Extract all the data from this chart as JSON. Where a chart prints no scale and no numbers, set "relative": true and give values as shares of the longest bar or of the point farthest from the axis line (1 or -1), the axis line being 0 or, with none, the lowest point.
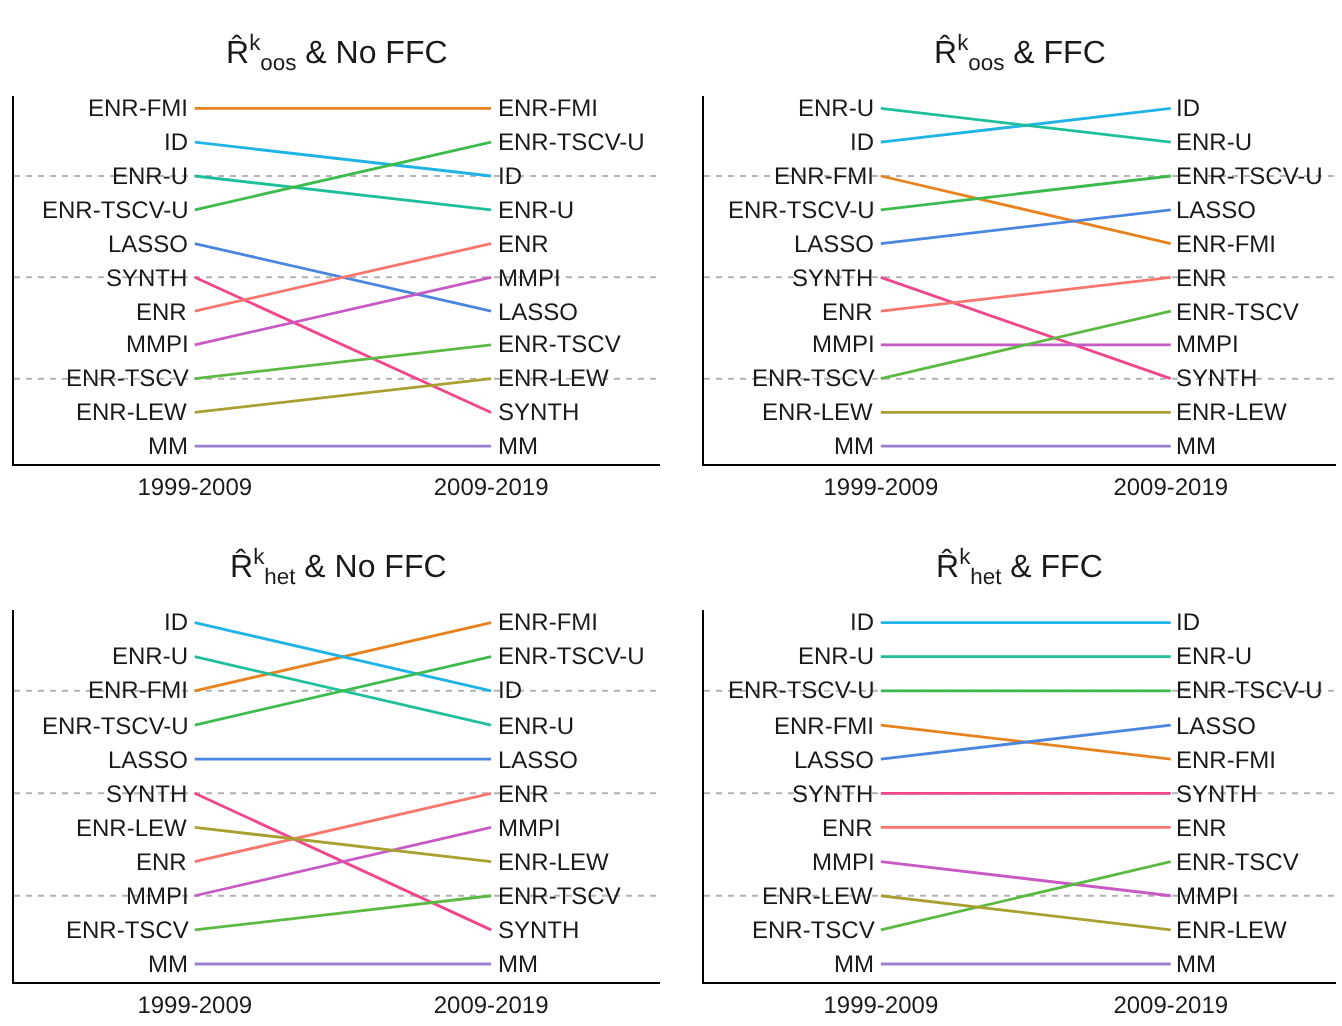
{
  "chart_data": [
    {
      "type": "line",
      "title": "R̂$^{k}$$_{oos}$ & No FFC",
      "categories": [
        "1999-2009",
        "2009-2019"
      ],
      "relative": true,
      "marker": "none",
      "series": [
        {
          "name": "ENR-FMI",
          "color": "#e8821e",
          "values": [
            1.0,
            1.0
          ]
        },
        {
          "name": "ID",
          "color": "#1fb3e6",
          "values": [
            0.905,
            0.81
          ]
        },
        {
          "name": "ENR-U",
          "color": "#1fbf9c",
          "values": [
            0.81,
            0.715
          ]
        },
        {
          "name": "ENR-TSCV-U",
          "color": "#3dbb4f",
          "values": [
            0.715,
            0.905
          ]
        },
        {
          "name": "LASSO",
          "color": "#4a86df",
          "values": [
            0.62,
            0.43
          ]
        },
        {
          "name": "SYNTH",
          "color": "#f0468c",
          "values": [
            0.525,
            0.145
          ]
        },
        {
          "name": "ENR",
          "color": "#f8766d",
          "values": [
            0.43,
            0.62
          ]
        },
        {
          "name": "MMPI",
          "color": "#c85ac4",
          "values": [
            0.335,
            0.525
          ]
        },
        {
          "name": "ENR-TSCV",
          "color": "#5cb944",
          "values": [
            0.24,
            0.335
          ]
        },
        {
          "name": "ENR-LEW",
          "color": "#a9a032",
          "values": [
            0.145,
            0.24
          ]
        },
        {
          "name": "MM",
          "color": "#9a80cf",
          "values": [
            0.05,
            0.05
          ]
        }
      ],
      "ref_lines": [
        {
          "axis": "y",
          "value": 0.81,
          "color": "#b3b3b3",
          "line_style": "dotted"
        },
        {
          "axis": "y",
          "value": 0.525,
          "color": "#b3b3b3",
          "line_style": "dotted"
        },
        {
          "axis": "y",
          "value": 0.24,
          "color": "#b3b3b3",
          "line_style": "dotted"
        }
      ]
    },
    {
      "type": "line",
      "title": "R̂$^{k}$$_{oos}$ & FFC",
      "categories": [
        "1999-2009",
        "2009-2019"
      ],
      "relative": true,
      "marker": "none",
      "series": [
        {
          "name": "ENR-FMI",
          "color": "#e8821e",
          "values": [
            0.81,
            0.62
          ]
        },
        {
          "name": "ID",
          "color": "#1fb3e6",
          "values": [
            0.905,
            1.0
          ]
        },
        {
          "name": "ENR-U",
          "color": "#1fbf9c",
          "values": [
            1.0,
            0.905
          ]
        },
        {
          "name": "ENR-TSCV-U",
          "color": "#3dbb4f",
          "values": [
            0.715,
            0.81
          ]
        },
        {
          "name": "LASSO",
          "color": "#4a86df",
          "values": [
            0.62,
            0.715
          ]
        },
        {
          "name": "SYNTH",
          "color": "#f0468c",
          "values": [
            0.525,
            0.24
          ]
        },
        {
          "name": "ENR",
          "color": "#f8766d",
          "values": [
            0.43,
            0.525
          ]
        },
        {
          "name": "MMPI",
          "color": "#c85ac4",
          "values": [
            0.335,
            0.335
          ]
        },
        {
          "name": "ENR-TSCV",
          "color": "#5cb944",
          "values": [
            0.24,
            0.43
          ]
        },
        {
          "name": "ENR-LEW",
          "color": "#a9a032",
          "values": [
            0.145,
            0.145
          ]
        },
        {
          "name": "MM",
          "color": "#9a80cf",
          "values": [
            0.05,
            0.05
          ]
        }
      ],
      "ref_lines": [
        {
          "axis": "y",
          "value": 0.81,
          "color": "#b3b3b3",
          "line_style": "dotted"
        },
        {
          "axis": "y",
          "value": 0.525,
          "color": "#b3b3b3",
          "line_style": "dotted"
        },
        {
          "axis": "y",
          "value": 0.24,
          "color": "#b3b3b3",
          "line_style": "dotted"
        }
      ]
    },
    {
      "type": "line",
      "title": "R̂$^{k}$$_{het}$ & No FFC",
      "categories": [
        "1999-2009",
        "2009-2019"
      ],
      "relative": true,
      "marker": "none",
      "series": [
        {
          "name": "ENR-FMI",
          "color": "#e8821e",
          "values": [
            0.81,
            1.0
          ]
        },
        {
          "name": "ID",
          "color": "#1fb3e6",
          "values": [
            1.0,
            0.81
          ]
        },
        {
          "name": "ENR-U",
          "color": "#1fbf9c",
          "values": [
            0.905,
            0.715
          ]
        },
        {
          "name": "ENR-TSCV-U",
          "color": "#3dbb4f",
          "values": [
            0.715,
            0.905
          ]
        },
        {
          "name": "LASSO",
          "color": "#4a86df",
          "values": [
            0.62,
            0.62
          ]
        },
        {
          "name": "SYNTH",
          "color": "#f0468c",
          "values": [
            0.525,
            0.145
          ]
        },
        {
          "name": "ENR",
          "color": "#f8766d",
          "values": [
            0.335,
            0.525
          ]
        },
        {
          "name": "MMPI",
          "color": "#c85ac4",
          "values": [
            0.24,
            0.43
          ]
        },
        {
          "name": "ENR-TSCV",
          "color": "#5cb944",
          "values": [
            0.145,
            0.24
          ]
        },
        {
          "name": "ENR-LEW",
          "color": "#a9a032",
          "values": [
            0.43,
            0.335
          ]
        },
        {
          "name": "MM",
          "color": "#9a80cf",
          "values": [
            0.05,
            0.05
          ]
        }
      ],
      "ref_lines": [
        {
          "axis": "y",
          "value": 0.81,
          "color": "#b3b3b3",
          "line_style": "dotted"
        },
        {
          "axis": "y",
          "value": 0.525,
          "color": "#b3b3b3",
          "line_style": "dotted"
        },
        {
          "axis": "y",
          "value": 0.24,
          "color": "#b3b3b3",
          "line_style": "dotted"
        }
      ]
    },
    {
      "type": "line",
      "title": "R̂$^{k}$$_{het}$ & FFC",
      "categories": [
        "1999-2009",
        "2009-2019"
      ],
      "relative": true,
      "marker": "none",
      "series": [
        {
          "name": "ENR-FMI",
          "color": "#e8821e",
          "values": [
            0.715,
            0.62
          ]
        },
        {
          "name": "ID",
          "color": "#1fb3e6",
          "values": [
            1.0,
            1.0
          ]
        },
        {
          "name": "ENR-U",
          "color": "#1fbf9c",
          "values": [
            0.905,
            0.905
          ]
        },
        {
          "name": "ENR-TSCV-U",
          "color": "#3dbb4f",
          "values": [
            0.81,
            0.81
          ]
        },
        {
          "name": "LASSO",
          "color": "#4a86df",
          "values": [
            0.62,
            0.715
          ]
        },
        {
          "name": "SYNTH",
          "color": "#f0468c",
          "values": [
            0.525,
            0.525
          ]
        },
        {
          "name": "ENR",
          "color": "#f8766d",
          "values": [
            0.43,
            0.43
          ]
        },
        {
          "name": "MMPI",
          "color": "#c85ac4",
          "values": [
            0.335,
            0.24
          ]
        },
        {
          "name": "ENR-TSCV",
          "color": "#5cb944",
          "values": [
            0.145,
            0.335
          ]
        },
        {
          "name": "ENR-LEW",
          "color": "#a9a032",
          "values": [
            0.24,
            0.145
          ]
        },
        {
          "name": "MM",
          "color": "#9a80cf",
          "values": [
            0.05,
            0.05
          ]
        }
      ],
      "ref_lines": [
        {
          "axis": "y",
          "value": 0.81,
          "color": "#b3b3b3",
          "line_style": "dotted"
        },
        {
          "axis": "y",
          "value": 0.525,
          "color": "#b3b3b3",
          "line_style": "dotted"
        },
        {
          "axis": "y",
          "value": 0.24,
          "color": "#b3b3b3",
          "line_style": "dotted"
        }
      ]
    }
  ]
}
